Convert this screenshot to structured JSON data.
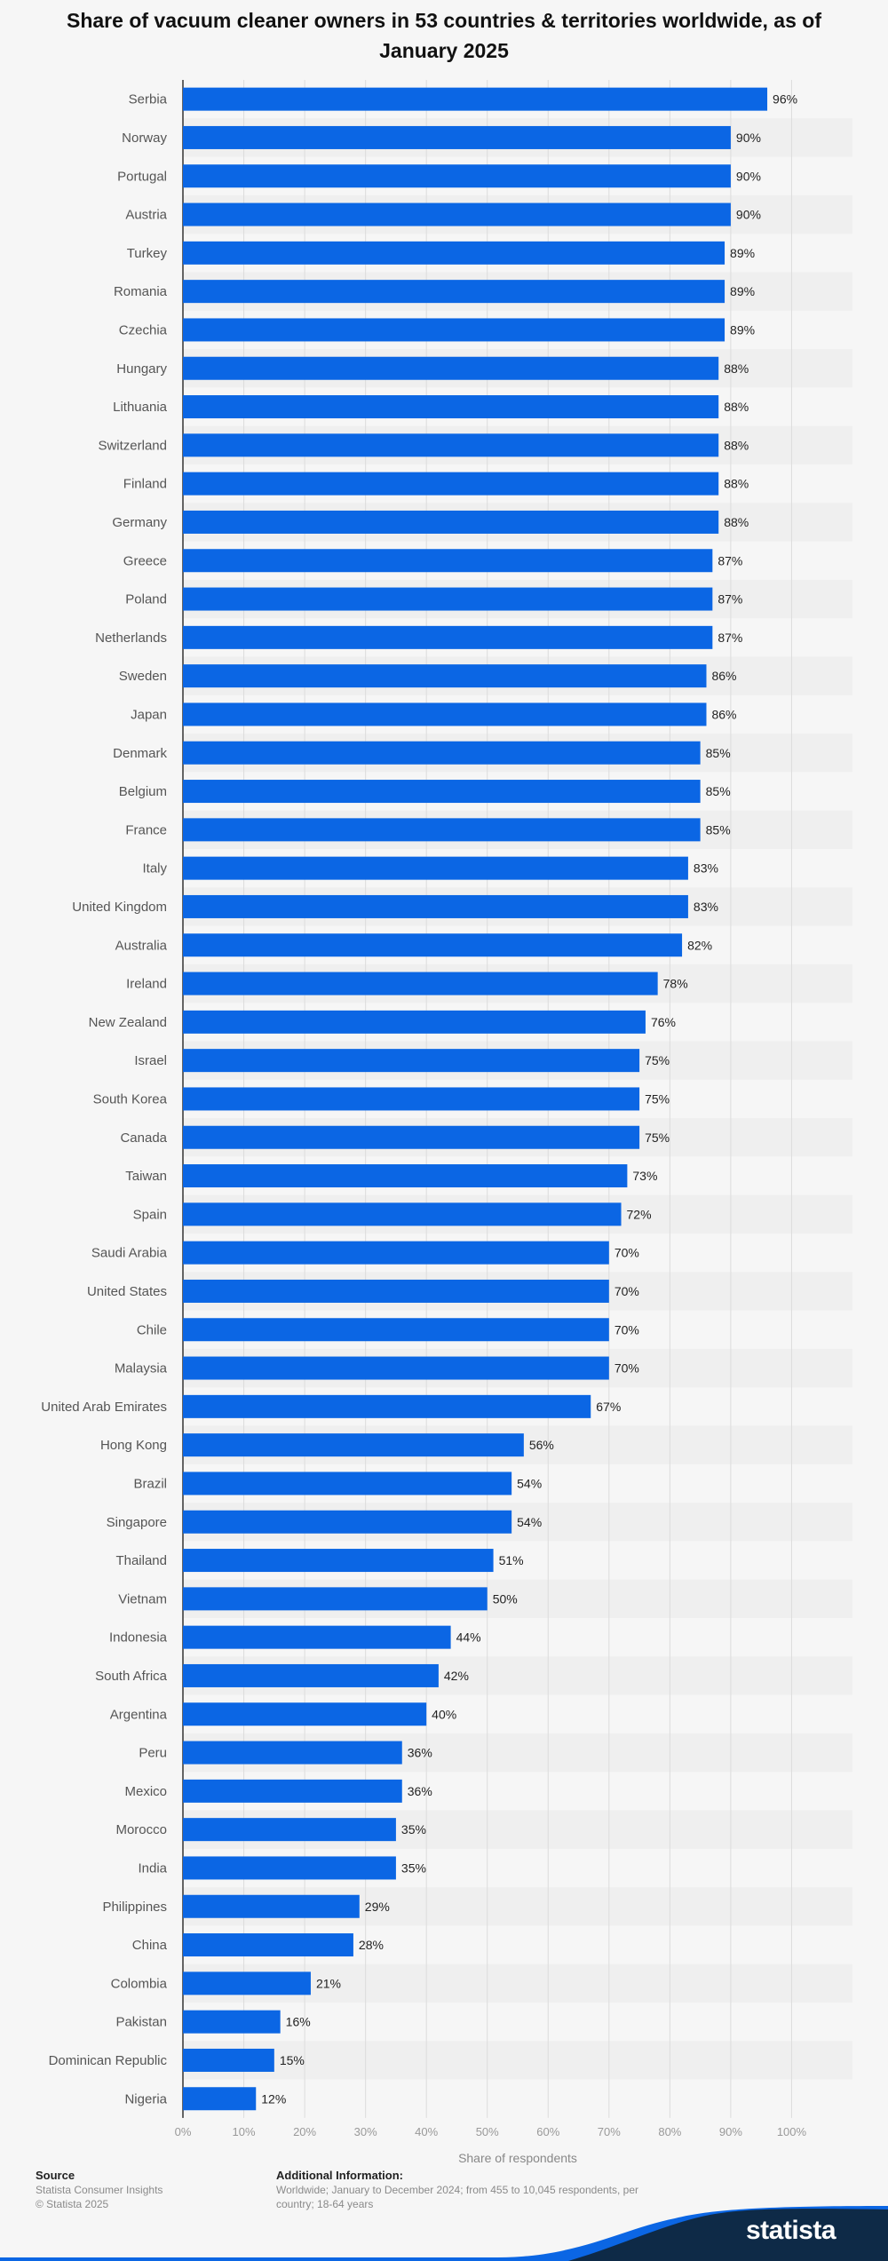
{
  "chart_data": {
    "type": "bar",
    "orientation": "horizontal",
    "title": "Share of vacuum cleaner owners in 53 countries & territories worldwide, as of January 2025",
    "xlabel": "Share of respondents",
    "ylabel": "",
    "xlim": [
      0,
      110
    ],
    "x_ticks": [
      "0%",
      "10%",
      "20%",
      "30%",
      "40%",
      "50%",
      "60%",
      "70%",
      "80%",
      "90%",
      "100%"
    ],
    "value_suffix": "%",
    "bar_color": "#0b66e4",
    "grid": true,
    "categories": [
      "Serbia",
      "Norway",
      "Portugal",
      "Austria",
      "Turkey",
      "Romania",
      "Czechia",
      "Hungary",
      "Lithuania",
      "Switzerland",
      "Finland",
      "Germany",
      "Greece",
      "Poland",
      "Netherlands",
      "Sweden",
      "Japan",
      "Denmark",
      "Belgium",
      "France",
      "Italy",
      "United Kingdom",
      "Australia",
      "Ireland",
      "New Zealand",
      "Israel",
      "South Korea",
      "Canada",
      "Taiwan",
      "Spain",
      "Saudi Arabia",
      "United States",
      "Chile",
      "Malaysia",
      "United Arab Emirates",
      "Hong Kong",
      "Brazil",
      "Singapore",
      "Thailand",
      "Vietnam",
      "Indonesia",
      "South Africa",
      "Argentina",
      "Peru",
      "Mexico",
      "Morocco",
      "India",
      "Philippines",
      "China",
      "Colombia",
      "Pakistan",
      "Dominican Republic",
      "Nigeria"
    ],
    "values": [
      96,
      90,
      90,
      90,
      89,
      89,
      89,
      88,
      88,
      88,
      88,
      88,
      87,
      87,
      87,
      86,
      86,
      85,
      85,
      85,
      83,
      83,
      82,
      78,
      76,
      75,
      75,
      75,
      73,
      72,
      70,
      70,
      70,
      70,
      67,
      56,
      54,
      54,
      51,
      50,
      44,
      42,
      40,
      36,
      36,
      35,
      35,
      29,
      28,
      21,
      16,
      15,
      12
    ]
  },
  "footer": {
    "source_heading": "Source",
    "source_line1": "Statista Consumer Insights",
    "source_line2": "© Statista 2025",
    "info_heading": "Additional Information:",
    "info_text": "Worldwide; January to December 2024; from 455 to 10,045 respondents, per country; 18-64 years"
  },
  "brand": {
    "logo_text": "statista"
  }
}
